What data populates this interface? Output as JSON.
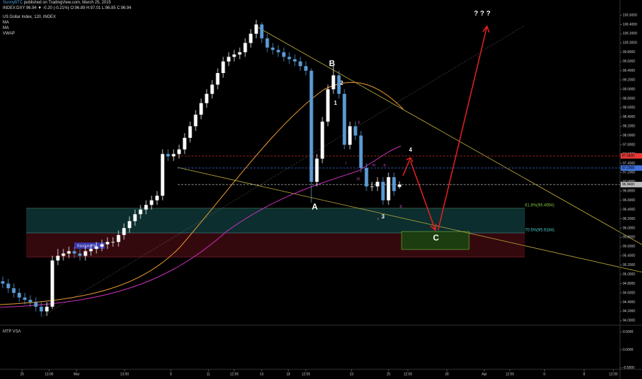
{
  "header": {
    "publisher": "SunnyBTC",
    "published": "published on TradingView.com, March 25, 2015",
    "quote": "INDEX:DXY 96.94 ▼ -0.20 (-0.21%) O:96.89 H:97.01 L:96.85 C:96.94"
  },
  "chart_data": {
    "type": "candlestick",
    "title": "US Dollar Index, 120, INDEX",
    "indicators": [
      "MA",
      "MA",
      "VWAP"
    ],
    "x": [
      0,
      1,
      2,
      3,
      4,
      5,
      6,
      7,
      8,
      9,
      10,
      11,
      12,
      13,
      14,
      15,
      16,
      17,
      18,
      19,
      20,
      21,
      22,
      23,
      24,
      25,
      26,
      27,
      28,
      29,
      30,
      31,
      32,
      33,
      34,
      35,
      36,
      37,
      38,
      39,
      40,
      41,
      42,
      43,
      44,
      45,
      46,
      47,
      48,
      49,
      50,
      51,
      52,
      53,
      54,
      55,
      56,
      57,
      58,
      59,
      60,
      61,
      62,
      63,
      64,
      65,
      66,
      67,
      68,
      69,
      70,
      71,
      72
    ],
    "open": [
      94.85,
      94.8,
      94.7,
      94.6,
      94.5,
      94.45,
      94.4,
      94.3,
      94.2,
      94.3,
      95.3,
      95.4,
      95.45,
      95.5,
      95.45,
      95.4,
      95.5,
      95.55,
      95.6,
      95.65,
      95.7,
      95.7,
      95.85,
      96.0,
      96.15,
      96.3,
      96.4,
      96.5,
      96.6,
      96.7,
      97.6,
      97.55,
      97.6,
      97.7,
      97.95,
      98.2,
      98.45,
      98.7,
      98.9,
      99.1,
      99.35,
      99.6,
      99.7,
      99.75,
      99.8,
      100.0,
      100.2,
      100.4,
      100.1,
      99.9,
      99.85,
      99.8,
      99.7,
      99.65,
      99.6,
      99.5,
      99.4,
      97.0,
      97.5,
      98.3,
      99.0,
      99.3,
      98.9,
      97.8,
      98.2,
      98.0,
      97.3,
      96.9,
      96.9,
      97.0,
      96.6,
      97.1,
      96.89
    ],
    "high": [
      94.95,
      94.9,
      94.8,
      94.7,
      94.6,
      94.55,
      94.5,
      94.4,
      94.4,
      95.4,
      95.55,
      95.55,
      95.6,
      95.6,
      95.55,
      95.6,
      95.65,
      95.7,
      95.75,
      95.8,
      95.8,
      95.95,
      96.1,
      96.25,
      96.4,
      96.5,
      96.6,
      96.7,
      96.8,
      97.7,
      97.7,
      97.7,
      97.8,
      98.05,
      98.3,
      98.55,
      98.8,
      99.0,
      99.2,
      99.45,
      99.7,
      99.8,
      99.85,
      99.9,
      100.1,
      100.3,
      100.5,
      100.45,
      100.2,
      100.0,
      99.95,
      99.9,
      99.8,
      99.75,
      99.7,
      99.6,
      99.45,
      97.6,
      98.4,
      99.1,
      99.5,
      99.4,
      99.0,
      98.3,
      98.3,
      98.1,
      97.4,
      97.0,
      97.1,
      97.1,
      97.2,
      97.2,
      97.01
    ],
    "low": [
      94.7,
      94.6,
      94.5,
      94.4,
      94.35,
      94.3,
      94.2,
      94.1,
      94.1,
      94.25,
      95.2,
      95.3,
      95.35,
      95.35,
      95.3,
      95.3,
      95.4,
      95.45,
      95.5,
      95.55,
      95.6,
      95.6,
      95.75,
      95.9,
      96.05,
      96.2,
      96.3,
      96.4,
      96.5,
      96.6,
      97.45,
      97.45,
      97.5,
      97.6,
      97.85,
      98.1,
      98.35,
      98.6,
      98.8,
      99.0,
      99.25,
      99.5,
      99.6,
      99.65,
      99.7,
      99.9,
      100.1,
      100.0,
      99.8,
      99.75,
      99.7,
      99.6,
      99.55,
      99.5,
      99.4,
      99.3,
      96.55,
      96.9,
      97.4,
      98.2,
      98.9,
      98.8,
      97.7,
      97.7,
      97.9,
      97.2,
      96.8,
      96.8,
      96.8,
      96.5,
      96.5,
      96.7,
      96.85
    ],
    "close": [
      94.8,
      94.7,
      94.6,
      94.5,
      94.45,
      94.4,
      94.3,
      94.2,
      94.3,
      95.3,
      95.4,
      95.45,
      95.5,
      95.45,
      95.4,
      95.5,
      95.55,
      95.6,
      95.65,
      95.7,
      95.7,
      95.85,
      96.0,
      96.15,
      96.3,
      96.4,
      96.5,
      96.6,
      96.7,
      97.6,
      97.55,
      97.6,
      97.7,
      97.95,
      98.2,
      98.45,
      98.7,
      98.9,
      99.1,
      99.35,
      99.6,
      99.7,
      99.75,
      99.8,
      100.0,
      100.2,
      100.4,
      100.1,
      99.9,
      99.85,
      99.8,
      99.7,
      99.65,
      99.6,
      99.5,
      99.4,
      97.0,
      97.5,
      98.3,
      99.0,
      99.3,
      98.9,
      97.8,
      98.2,
      98.0,
      97.3,
      96.9,
      96.9,
      97.0,
      96.6,
      97.1,
      96.8,
      96.94
    ],
    "up_color": "#ffffff",
    "down_color": "#5b9bd5",
    "xlim": [
      -0.5,
      112
    ],
    "xticks": [
      {
        "value": 3.5,
        "label": "25"
      },
      {
        "value": 8.4,
        "label": "13:00"
      },
      {
        "value": 13.4,
        "label": "Mar"
      },
      {
        "value": 22.1,
        "label": "13:00"
      },
      {
        "value": 30.5,
        "label": "9"
      },
      {
        "value": 37.3,
        "label": "11"
      },
      {
        "value": 42,
        "label": "12:00"
      },
      {
        "value": 47,
        "label": "16"
      },
      {
        "value": 51.8,
        "label": "18"
      },
      {
        "value": 55,
        "label": "12:00"
      },
      {
        "value": 63.3,
        "label": "23"
      },
      {
        "value": 70,
        "label": "25"
      },
      {
        "value": 73.5,
        "label": "12:00"
      },
      {
        "value": 80.6,
        "label": "30"
      },
      {
        "value": 87.4,
        "label": "Apr"
      },
      {
        "value": 92,
        "label": "12:00"
      },
      {
        "value": 98.3,
        "label": "6"
      },
      {
        "value": 105.5,
        "label": "8"
      },
      {
        "value": 110.8,
        "label": "12:00"
      }
    ],
    "ylim": [
      93.9,
      100.72
    ],
    "yticks": [
      {
        "value": 94.0,
        "label": "94.0000"
      },
      {
        "value": 94.2,
        "label": "94.2000"
      },
      {
        "value": 94.4,
        "label": "94.4000"
      },
      {
        "value": 94.6,
        "label": "94.6000"
      },
      {
        "value": 94.8,
        "label": "94.8000"
      },
      {
        "value": 95.0,
        "label": "95.0000"
      },
      {
        "value": 95.2,
        "label": "95.2000"
      },
      {
        "value": 95.4,
        "label": "95.4000"
      },
      {
        "value": 95.6,
        "label": "95.6000"
      },
      {
        "value": 95.8,
        "label": "95.8000"
      },
      {
        "value": 96.0,
        "label": "96.0000"
      },
      {
        "value": 96.2,
        "label": "96.2000"
      },
      {
        "value": 96.4,
        "label": "96.4000"
      },
      {
        "value": 96.6,
        "label": "96.6000"
      },
      {
        "value": 96.8,
        "label": "96.8000"
      },
      {
        "value": 97.0,
        "label": "97.0000"
      },
      {
        "value": 97.2,
        "label": "97.2000"
      },
      {
        "value": 97.4,
        "label": "97.4000"
      },
      {
        "value": 97.6,
        "label": "97.6000"
      },
      {
        "value": 97.8,
        "label": "97.8000"
      },
      {
        "value": 98.0,
        "label": "98.0000"
      },
      {
        "value": 98.2,
        "label": "98.2000"
      },
      {
        "value": 98.4,
        "label": "98.4000"
      },
      {
        "value": 98.6,
        "label": "98.6000"
      },
      {
        "value": 98.8,
        "label": "98.8000"
      },
      {
        "value": 99.0,
        "label": "99.0000"
      },
      {
        "value": 99.2,
        "label": "99.2000"
      },
      {
        "value": 99.4,
        "label": "99.4000"
      },
      {
        "value": 99.6,
        "label": "99.6000"
      },
      {
        "value": 99.8,
        "label": "99.8000"
      },
      {
        "value": 100.0,
        "label": "100.0000"
      },
      {
        "value": 100.2,
        "label": "100.2000"
      },
      {
        "value": 100.4,
        "label": "100.4000"
      },
      {
        "value": 100.6,
        "label": "100.6000"
      }
    ],
    "price_levels": [
      {
        "value": 97.56,
        "label": "97.5600",
        "color": "#e53935"
      },
      {
        "value": 97.2968,
        "label": "97.2968",
        "color": "#3f6fd8"
      },
      {
        "value": 96.94,
        "label": "96.9400",
        "color": "#bbbbbb"
      }
    ],
    "annotations": [
      "B",
      "A",
      "C",
      "1",
      "2",
      "3",
      "4",
      "i",
      "ii",
      "iii",
      "iv",
      "v",
      "a",
      "b",
      "? ? ?",
      "61.8%(96.4694)",
      "70.5%(95.9184)",
      "Random Plot"
    ]
  },
  "lower_panel": {
    "title": "MTP VSA",
    "ylim": [
      -0.54,
      0.63
    ],
    "yticks": [
      {
        "value": 0.5,
        "label": "0.5000"
      },
      {
        "value": 0,
        "label": "0.0000"
      },
      {
        "value": -0.5,
        "label": "-0.5000"
      }
    ]
  }
}
